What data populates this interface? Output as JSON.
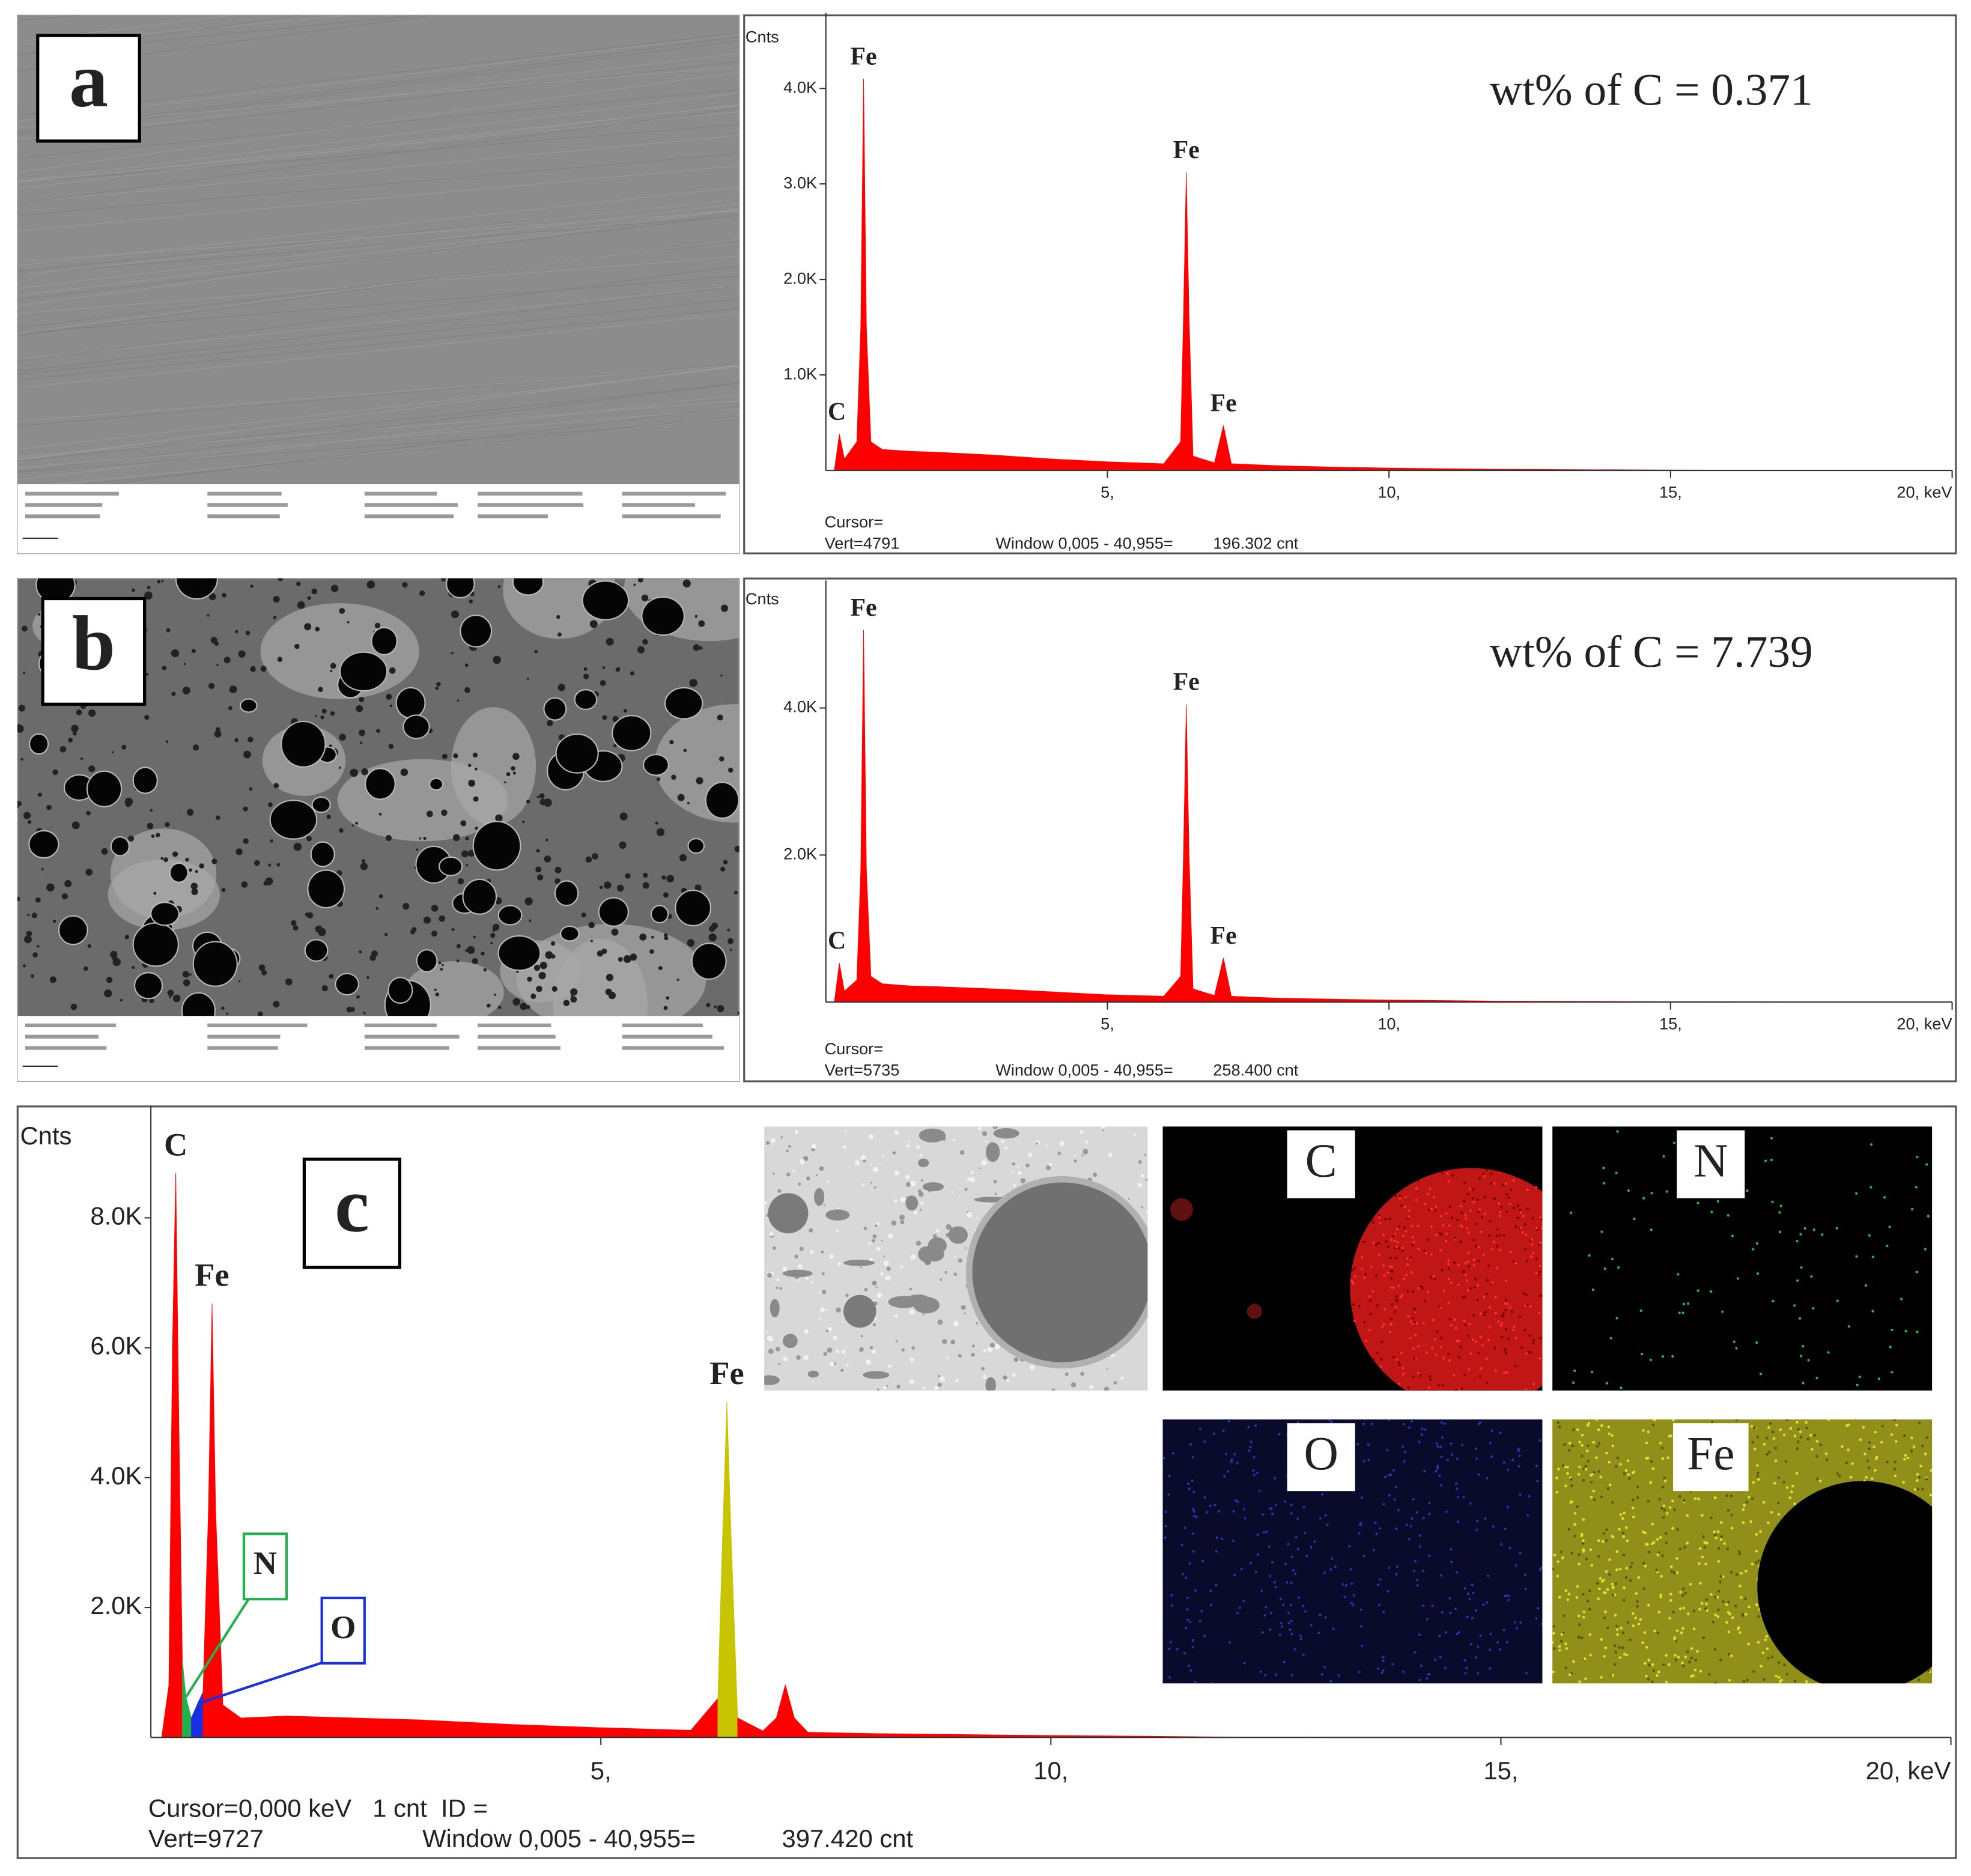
{
  "chart_data": [
    {
      "type": "area",
      "panel": "a",
      "annotation": "wt% of  C = 0.371",
      "ylabel": "Cnts",
      "color": "#ff0000",
      "xlim": [
        0,
        20
      ],
      "xticks": [
        {
          "value": 5,
          "label": "5,"
        },
        {
          "value": 10,
          "label": "10,"
        },
        {
          "value": 15,
          "label": "15,"
        },
        {
          "value": 20,
          "label": "20, keV"
        }
      ],
      "ylim": [
        0,
        4791
      ],
      "yticks": [
        {
          "value": 1000,
          "label": "1.0K"
        },
        {
          "value": 2000,
          "label": "2.0K"
        },
        {
          "value": 3000,
          "label": "3.0K"
        },
        {
          "value": 4000,
          "label": "4.0K"
        }
      ],
      "x": [
        0,
        0.15,
        0.24,
        0.33,
        0.55,
        0.62,
        0.67,
        0.72,
        0.8,
        1,
        1.5,
        2,
        3,
        4,
        5,
        6,
        6.3,
        6.35,
        6.4,
        6.45,
        6.52,
        6.9,
        7.06,
        7.2,
        8,
        9,
        10,
        12,
        15,
        20
      ],
      "values": [
        0,
        0,
        380,
        120,
        300,
        1500,
        4100,
        1500,
        300,
        220,
        200,
        190,
        160,
        120,
        90,
        70,
        300,
        1600,
        3120,
        1600,
        150,
        80,
        470,
        70,
        50,
        35,
        25,
        12,
        5,
        0
      ],
      "labels": [
        null,
        null,
        "C",
        null,
        null,
        null,
        "Fe",
        null,
        null,
        null,
        null,
        null,
        null,
        null,
        null,
        null,
        null,
        null,
        "Fe",
        null,
        null,
        null,
        "Fe",
        null,
        null,
        null,
        null,
        null,
        null,
        null
      ],
      "footer": [
        "Cursor=",
        "Vert=4791",
        "Window 0,005 - 40,955=",
        "196.302 cnt"
      ]
    },
    {
      "type": "area",
      "panel": "b",
      "annotation": "wt% of  C = 7.739",
      "ylabel": "Cnts",
      "color": "#ff0000",
      "xlim": [
        0,
        20
      ],
      "xticks": [
        {
          "value": 5,
          "label": "5,"
        },
        {
          "value": 10,
          "label": "10,"
        },
        {
          "value": 15,
          "label": "15,"
        },
        {
          "value": 20,
          "label": "20, keV"
        }
      ],
      "ylim": [
        0,
        5735
      ],
      "yticks": [
        {
          "value": 2000,
          "label": "2.0K"
        },
        {
          "value": 4000,
          "label": "4.0K"
        }
      ],
      "x": [
        0,
        0.15,
        0.24,
        0.33,
        0.55,
        0.62,
        0.67,
        0.72,
        0.8,
        1,
        1.5,
        2,
        3,
        4,
        5,
        6,
        6.3,
        6.35,
        6.4,
        6.45,
        6.52,
        6.9,
        7.06,
        7.2,
        8,
        9,
        10,
        12,
        15,
        20
      ],
      "values": [
        0,
        0,
        530,
        150,
        300,
        1800,
        5060,
        1800,
        350,
        250,
        220,
        210,
        180,
        140,
        100,
        80,
        350,
        2000,
        4050,
        2000,
        180,
        90,
        600,
        80,
        55,
        40,
        28,
        14,
        6,
        0
      ],
      "labels": [
        null,
        null,
        "C",
        null,
        null,
        null,
        "Fe",
        null,
        null,
        null,
        null,
        null,
        null,
        null,
        null,
        null,
        null,
        null,
        "Fe",
        null,
        null,
        null,
        "Fe",
        null,
        null,
        null,
        null,
        null,
        null,
        null
      ],
      "footer": [
        "Cursor=",
        "Vert=5735",
        "Window 0,005 - 40,955=",
        "258.400 cnt"
      ]
    },
    {
      "type": "area",
      "panel": "c",
      "ylabel": "Cnts",
      "color": "#ff0000",
      "xlim": [
        0,
        20
      ],
      "xticks": [
        {
          "value": 5,
          "label": "5,"
        },
        {
          "value": 10,
          "label": "10,"
        },
        {
          "value": 15,
          "label": "15,"
        },
        {
          "value": 20,
          "label": "20, keV"
        }
      ],
      "ylim": [
        0,
        9727
      ],
      "yticks": [
        {
          "value": 2000,
          "label": "2.0K"
        },
        {
          "value": 4000,
          "label": "4.0K"
        },
        {
          "value": 6000,
          "label": "6.0K"
        },
        {
          "value": 8000,
          "label": "8.0K"
        }
      ],
      "x": [
        0,
        0.12,
        0.2,
        0.24,
        0.277,
        0.31,
        0.35,
        0.39,
        0.45,
        0.52,
        0.58,
        0.64,
        0.68,
        0.72,
        0.8,
        1,
        1.5,
        2,
        3,
        4,
        5,
        6,
        6.3,
        6.35,
        6.4,
        6.45,
        6.52,
        6.8,
        6.95,
        7.05,
        7.15,
        7.3,
        8,
        9,
        10,
        11,
        12,
        15,
        20
      ],
      "values": [
        0,
        0,
        800,
        6000,
        8690,
        5000,
        1200,
        620,
        300,
        520,
        700,
        3500,
        6680,
        3500,
        500,
        300,
        330,
        310,
        270,
        200,
        150,
        110,
        600,
        3000,
        5170,
        3000,
        300,
        100,
        300,
        810,
        300,
        80,
        60,
        45,
        30,
        20,
        5,
        3,
        0
      ],
      "colors": [
        "#ff0000",
        "#ff0000",
        "#ff0000",
        "#ff0000",
        "#ff0000",
        "#ff0000",
        "#22b14c",
        "#22b14c",
        "#1a2fe0",
        "#1a2fe0",
        "#ff0000",
        "#ff0000",
        "#ff0000",
        "#ff0000",
        "#ff0000",
        "#ff0000",
        "#ff0000",
        "#ff0000",
        "#ff0000",
        "#ff0000",
        "#ff0000",
        "#ff0000",
        "#c8c400",
        "#c8c400",
        "#c8c400",
        "#c8c400",
        "#ff0000",
        "#ff0000",
        "#ff0000",
        "#ff0000",
        "#ff0000",
        "#ff0000",
        "#ff0000",
        "#ff0000",
        "#ff0000",
        "#ff0000",
        "#ff0000",
        "#ff0000",
        "#ff0000"
      ],
      "labels": [
        null,
        null,
        null,
        null,
        "C",
        null,
        null,
        "N",
        null,
        "O",
        null,
        null,
        "Fe",
        null,
        null,
        null,
        null,
        null,
        null,
        null,
        null,
        null,
        null,
        null,
        "Fe",
        null,
        null,
        null,
        null,
        null,
        null,
        null,
        null,
        null,
        null,
        null,
        null,
        null,
        null
      ],
      "footer": [
        "Cursor=0,000 keV   1 cnt  ID =",
        "Vert=9727",
        "Window 0,005 - 40,955=",
        "397.420 cnt"
      ],
      "maps": [
        {
          "label": "C",
          "color": "#e8201c"
        },
        {
          "label": "N",
          "color": "#22a84a"
        },
        {
          "label": "O",
          "color": "#1a2fe0"
        },
        {
          "label": "Fe",
          "color": "#f0a040"
        }
      ]
    }
  ]
}
